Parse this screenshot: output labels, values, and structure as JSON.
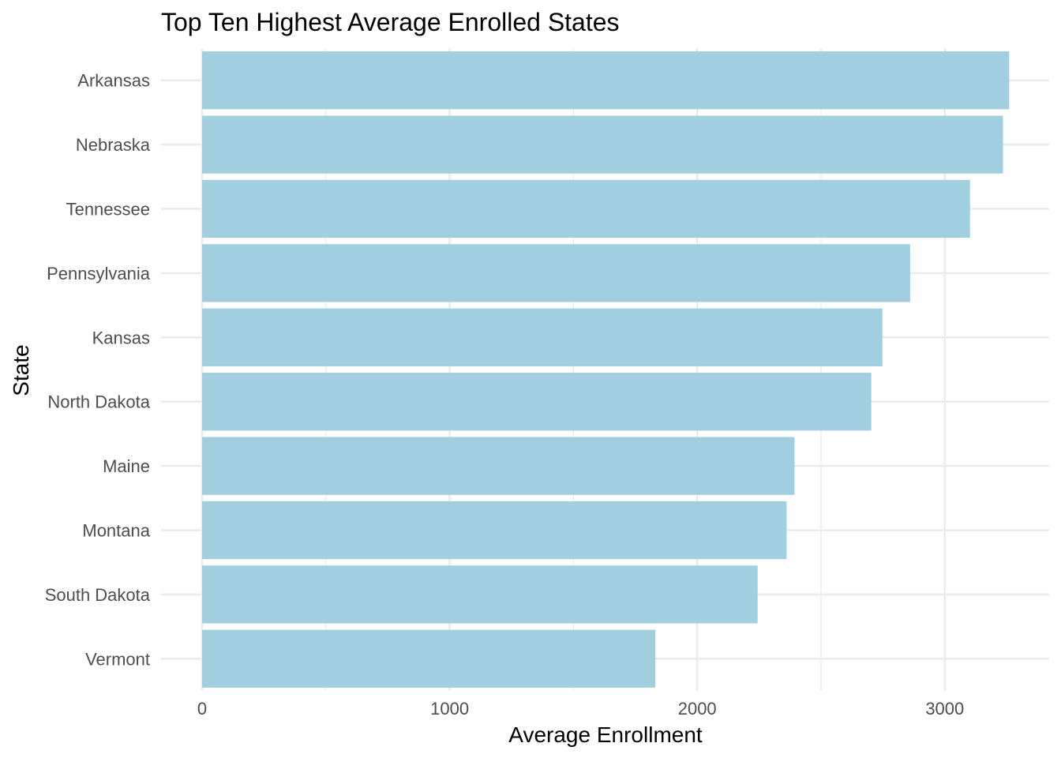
{
  "chart_data": {
    "type": "bar",
    "orientation": "horizontal",
    "title": "Top Ten Highest Average Enrolled States",
    "xlabel": "Average Enrollment",
    "ylabel": "State",
    "categories": [
      "Arkansas",
      "Nebraska",
      "Tennessee",
      "Pennsylvania",
      "Kansas",
      "North Dakota",
      "Maine",
      "Montana",
      "South Dakota",
      "Vermont"
    ],
    "values": [
      3260,
      3235,
      3102,
      2860,
      2748,
      2703,
      2393,
      2361,
      2244,
      1831
    ],
    "xlim": [
      0,
      3260
    ],
    "xticks": [
      0,
      1000,
      2000,
      3000
    ],
    "xtick_labels": [
      "0",
      "1000",
      "2000",
      "3000"
    ],
    "grid": true,
    "bar_color": "#a1cfe0",
    "grid_color": "#ebebeb",
    "legend": "none"
  }
}
